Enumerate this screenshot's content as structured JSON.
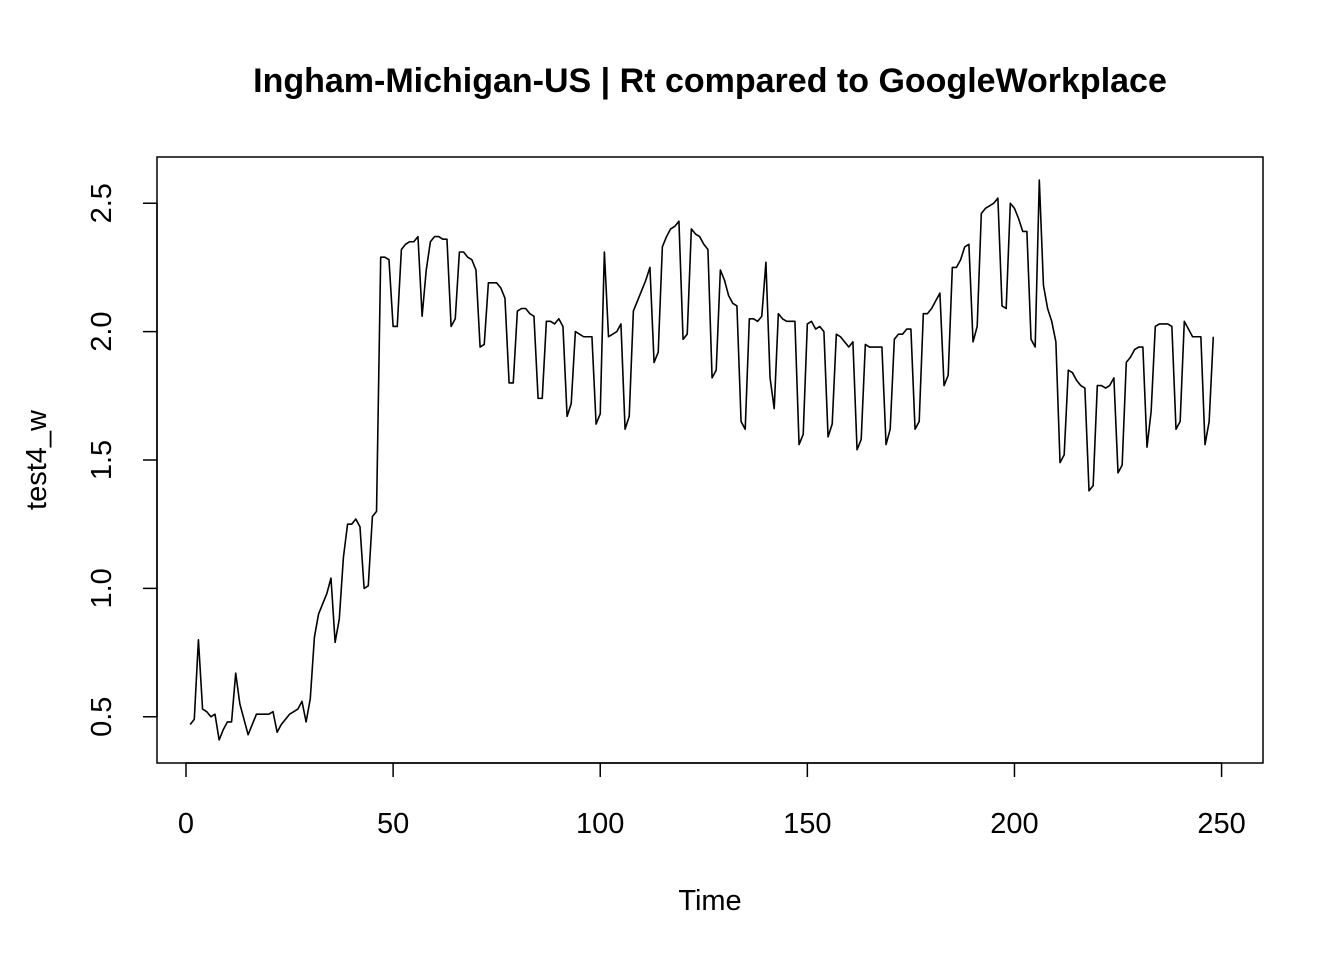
{
  "chart_data": {
    "type": "line",
    "title": "Ingham-Michigan-US | Rt compared to GoogleWorkplace",
    "xlabel": "Time",
    "ylabel": "test4_w",
    "xlim": [
      -7,
      260
    ],
    "ylim": [
      0.32,
      2.68
    ],
    "x_ticks": [
      0,
      50,
      100,
      150,
      200,
      250
    ],
    "y_ticks": [
      0.5,
      1.0,
      1.5,
      2.0,
      2.5
    ],
    "x_tick_labels": [
      "0",
      "50",
      "100",
      "150",
      "200",
      "250"
    ],
    "y_tick_labels": [
      "0.5",
      "1.0",
      "1.5",
      "2.0",
      "2.5"
    ],
    "grid": false,
    "legend": "none",
    "line_color": "#000000",
    "series": [
      {
        "x_start": 1,
        "x_step": 1,
        "values": [
          0.47,
          0.49,
          0.8,
          0.53,
          0.52,
          0.5,
          0.51,
          0.41,
          0.45,
          0.48,
          0.48,
          0.67,
          0.55,
          0.49,
          0.43,
          0.47,
          0.51,
          0.51,
          0.51,
          0.51,
          0.52,
          0.44,
          0.47,
          0.49,
          0.51,
          0.52,
          0.53,
          0.56,
          0.48,
          0.57,
          0.81,
          0.9,
          0.94,
          0.98,
          1.04,
          0.79,
          0.88,
          1.12,
          1.25,
          1.25,
          1.27,
          1.24,
          1.0,
          1.01,
          1.28,
          1.3,
          2.29,
          2.29,
          2.28,
          2.02,
          2.02,
          2.32,
          2.34,
          2.35,
          2.35,
          2.37,
          2.06,
          2.24,
          2.35,
          2.37,
          2.37,
          2.36,
          2.36,
          2.02,
          2.05,
          2.31,
          2.31,
          2.29,
          2.28,
          2.24,
          1.94,
          1.95,
          2.19,
          2.19,
          2.19,
          2.17,
          2.13,
          1.8,
          1.8,
          2.08,
          2.09,
          2.09,
          2.07,
          2.06,
          1.74,
          1.74,
          2.04,
          2.04,
          2.03,
          2.05,
          2.02,
          1.67,
          1.72,
          2.0,
          1.99,
          1.98,
          1.98,
          1.98,
          1.64,
          1.68,
          2.31,
          1.98,
          1.99,
          2.0,
          2.03,
          1.62,
          1.67,
          2.08,
          2.12,
          2.16,
          2.2,
          2.25,
          1.88,
          1.92,
          2.33,
          2.37,
          2.4,
          2.41,
          2.43,
          1.97,
          1.99,
          2.4,
          2.38,
          2.37,
          2.34,
          2.32,
          1.82,
          1.85,
          2.24,
          2.2,
          2.14,
          2.11,
          2.1,
          1.65,
          1.62,
          2.05,
          2.05,
          2.04,
          2.06,
          2.27,
          1.82,
          1.7,
          2.07,
          2.05,
          2.04,
          2.04,
          2.04,
          1.56,
          1.6,
          2.03,
          2.04,
          2.01,
          2.02,
          2.0,
          1.59,
          1.64,
          1.99,
          1.98,
          1.96,
          1.94,
          1.96,
          1.54,
          1.58,
          1.95,
          1.94,
          1.94,
          1.94,
          1.94,
          1.56,
          1.62,
          1.97,
          1.99,
          1.99,
          2.01,
          2.01,
          1.62,
          1.65,
          2.07,
          2.07,
          2.09,
          2.12,
          2.15,
          1.79,
          1.83,
          2.25,
          2.25,
          2.28,
          2.33,
          2.34,
          1.96,
          2.02,
          2.46,
          2.48,
          2.49,
          2.5,
          2.52,
          2.1,
          2.09,
          2.5,
          2.48,
          2.44,
          2.39,
          2.39,
          1.97,
          1.94,
          2.59,
          2.18,
          2.09,
          2.04,
          1.96,
          1.49,
          1.52,
          1.85,
          1.84,
          1.81,
          1.79,
          1.78,
          1.38,
          1.4,
          1.79,
          1.79,
          1.78,
          1.79,
          1.82,
          1.45,
          1.48,
          1.88,
          1.9,
          1.93,
          1.94,
          1.94,
          1.55,
          1.69,
          2.02,
          2.03,
          2.03,
          2.03,
          2.02,
          1.62,
          1.65,
          2.04,
          2.01,
          1.98,
          1.98,
          1.98,
          1.56,
          1.65,
          1.98
        ]
      }
    ]
  }
}
